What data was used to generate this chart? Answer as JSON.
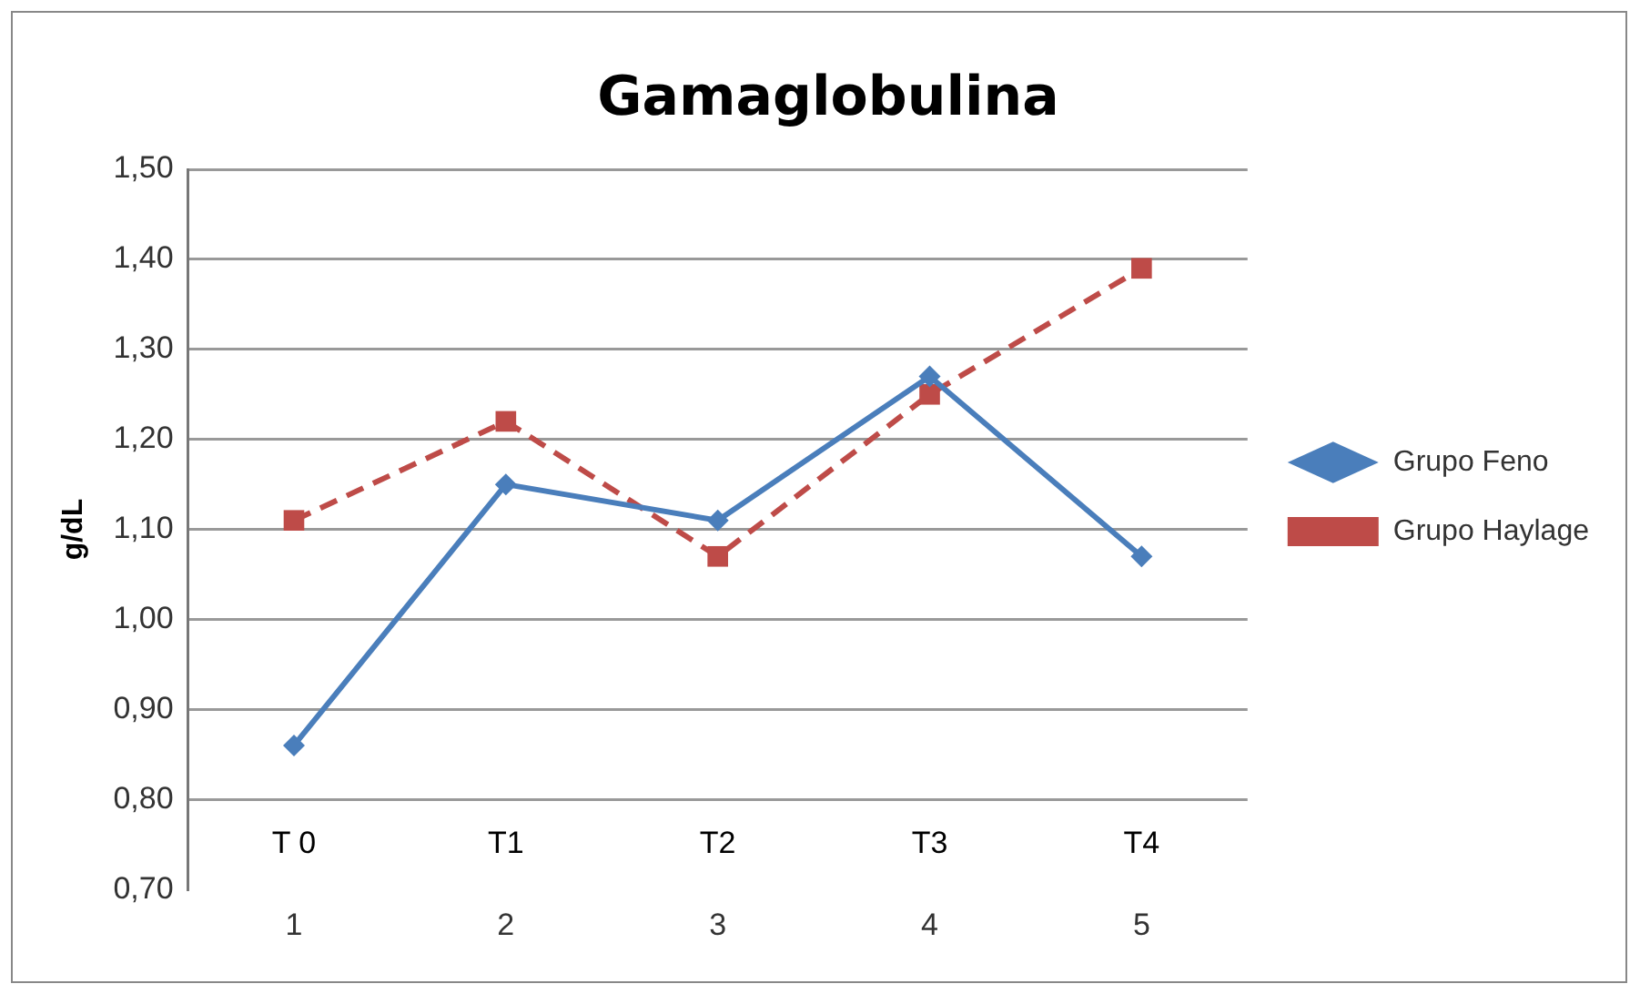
{
  "chart_data": {
    "type": "line",
    "title": "Gamaglobulina",
    "ylabel": "g/dL",
    "x": [
      1,
      2,
      3,
      4,
      5
    ],
    "xlim": [
      0.5,
      5.5
    ],
    "xticks": [
      1,
      2,
      3,
      4,
      5
    ],
    "ylim": [
      0.7,
      1.5
    ],
    "yticks": [
      {
        "value": 0.7,
        "label": "0,70"
      },
      {
        "value": 0.8,
        "label": "0,80"
      },
      {
        "value": 0.9,
        "label": "0,90"
      },
      {
        "value": 1.0,
        "label": "1,00"
      },
      {
        "value": 1.1,
        "label": "1,10"
      },
      {
        "value": 1.2,
        "label": "1,20"
      },
      {
        "value": 1.3,
        "label": "1,30"
      },
      {
        "value": 1.4,
        "label": "1,40"
      },
      {
        "value": 1.5,
        "label": "1,50"
      }
    ],
    "grid": "y",
    "legend": "right",
    "annotations": [
      "T 0",
      "T1",
      "T2",
      "T3",
      "T4"
    ],
    "series": [
      {
        "name": "Grupo Feno",
        "color": "#4a7ebb",
        "marker": "diamond",
        "line_style": "solid",
        "values": [
          0.86,
          1.15,
          1.11,
          1.27,
          1.07
        ]
      },
      {
        "name": "Grupo Haylage",
        "color": "#be4b48",
        "marker": "square",
        "line_style": "dashed",
        "values": [
          1.11,
          1.22,
          1.07,
          1.25,
          1.39
        ]
      }
    ]
  }
}
